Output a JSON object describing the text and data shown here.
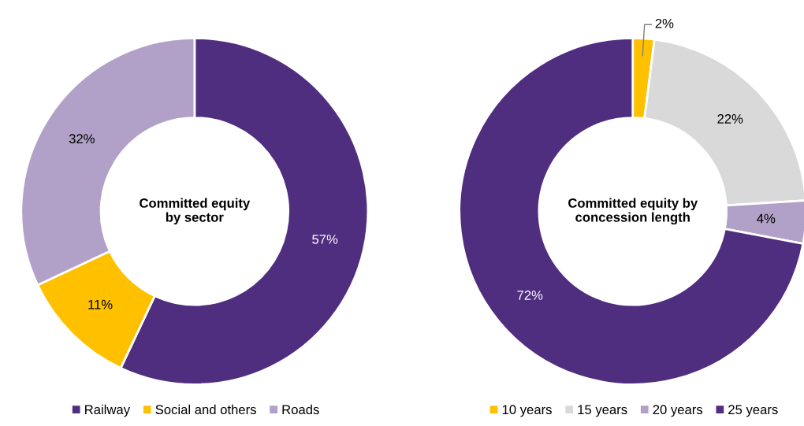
{
  "chart_data": [
    {
      "type": "donut",
      "title": "Committed equity\nby sector",
      "categories": [
        "Railway",
        "Social and others",
        "Roads"
      ],
      "values": [
        57,
        11,
        32
      ],
      "colors": [
        "#4f2d7f",
        "#ffc000",
        "#b1a0c7"
      ],
      "value_labels": [
        "57%",
        "11%",
        "32%"
      ],
      "legend": "bottom"
    },
    {
      "type": "donut",
      "title": "Committed equity by\nconcession length",
      "categories": [
        "10 years",
        "15 years",
        "20 years",
        "25 years"
      ],
      "values": [
        2,
        22,
        4,
        72
      ],
      "colors": [
        "#ffc000",
        "#d9d9d9",
        "#b1a0c7",
        "#4f2d7f"
      ],
      "value_labels": [
        "2%",
        "22%",
        "4%",
        "72%"
      ],
      "legend": "bottom"
    }
  ]
}
